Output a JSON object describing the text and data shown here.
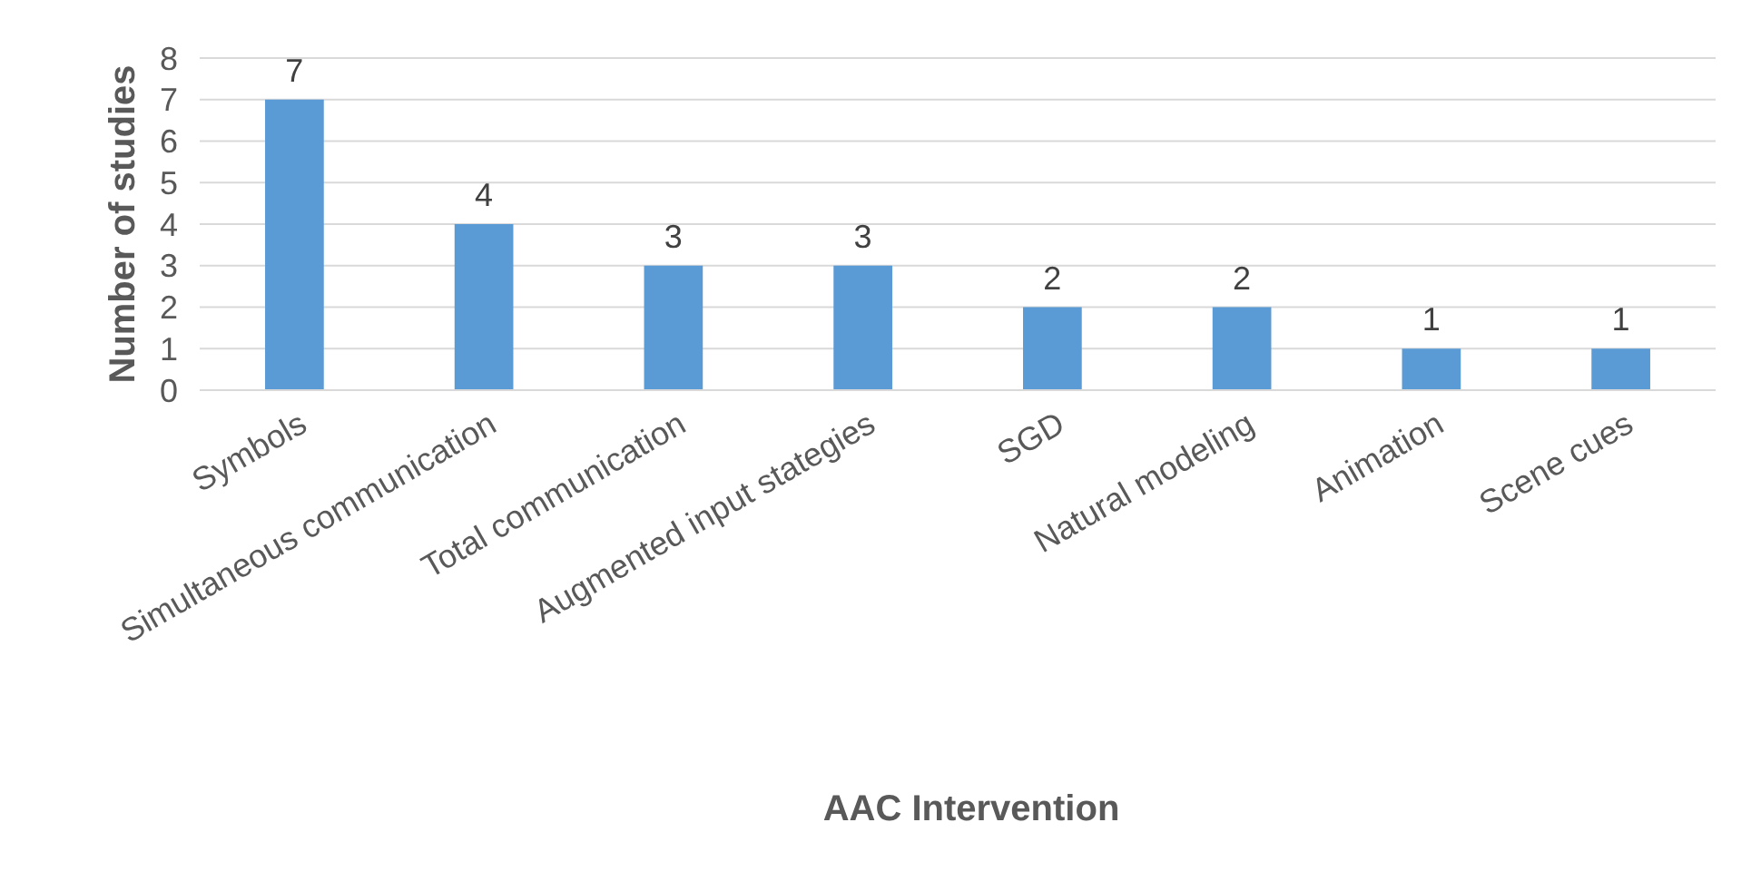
{
  "chart_data": {
    "type": "bar",
    "xlabel": "AAC Intervention",
    "ylabel": "Number of studies",
    "categories": [
      "Symbols",
      "Simultaneous communication",
      "Total communication",
      "Augmented input stategies",
      "SGD",
      "Natural modeling",
      "Animation",
      "Scene cues"
    ],
    "values": [
      7,
      4,
      3,
      3,
      2,
      2,
      1,
      1
    ],
    "color": "#5b9bd5",
    "ylim": [
      0,
      8
    ],
    "yticks": [
      0,
      1,
      2,
      3,
      4,
      5,
      6,
      7,
      8
    ],
    "grid": "y",
    "data_labels": true
  }
}
